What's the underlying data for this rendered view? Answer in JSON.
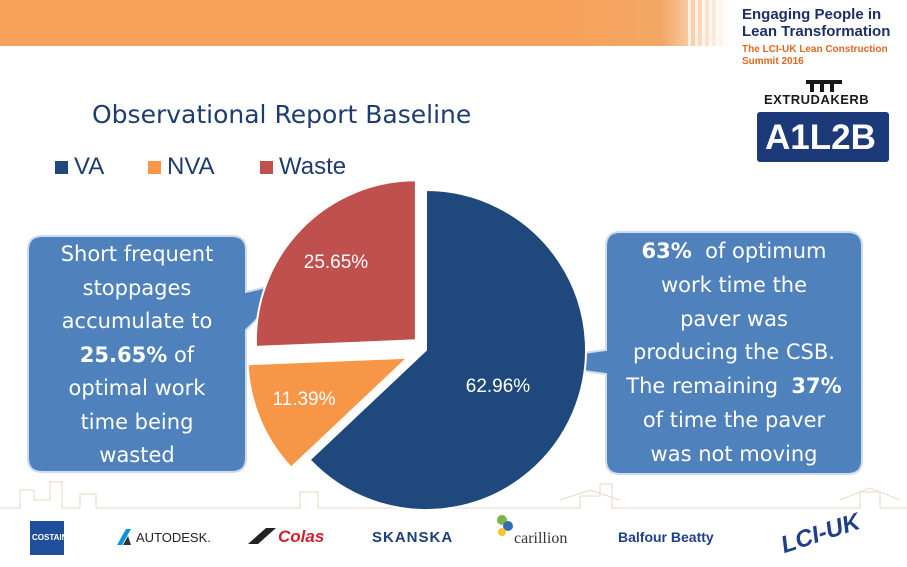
{
  "header": {
    "conference_title": "Engaging People in Lean Transformation",
    "conference_subtitle": "The LCI-UK Lean Construction Summit 2016"
  },
  "logos": {
    "extrudakerb": "EXTRUDAKERB",
    "a1l2b": "A1L2B",
    "sponsors": [
      "COSTAIN",
      "AUTODESK.",
      "Colas",
      "SKANSKA",
      "carillion",
      "Balfour Beatty",
      "LCI-UK"
    ]
  },
  "colors": {
    "va": "#1f497d",
    "nva": "#f79646",
    "waste": "#c0504d",
    "callout_fill": "#4f81bd",
    "title": "#1f3c70"
  },
  "chart_data": {
    "type": "pie",
    "title": "Observational Report Baseline",
    "legend_position": "top",
    "categories": [
      "VA",
      "NVA",
      "Waste"
    ],
    "values": [
      62.96,
      11.39,
      25.65
    ],
    "labels": [
      "62.96%",
      "11.39%",
      "25.65%"
    ]
  },
  "callouts": {
    "left": {
      "line1": "Short frequent",
      "line2": "stoppages",
      "line3": "accumulate to",
      "line4_bold": "25.65%",
      "line4_rest": " of",
      "line5": "optimal work",
      "line6": "time being",
      "line7": "wasted"
    },
    "right": {
      "line1_bold": "63%",
      "line1_rest": "  of optimum",
      "line2": "work time the",
      "line3": "paver was",
      "line4": "producing the CSB.",
      "line5_pre": "The remaining  ",
      "line5_bold": "37%",
      "line6": "of time the paver",
      "line7": "was not moving"
    }
  }
}
